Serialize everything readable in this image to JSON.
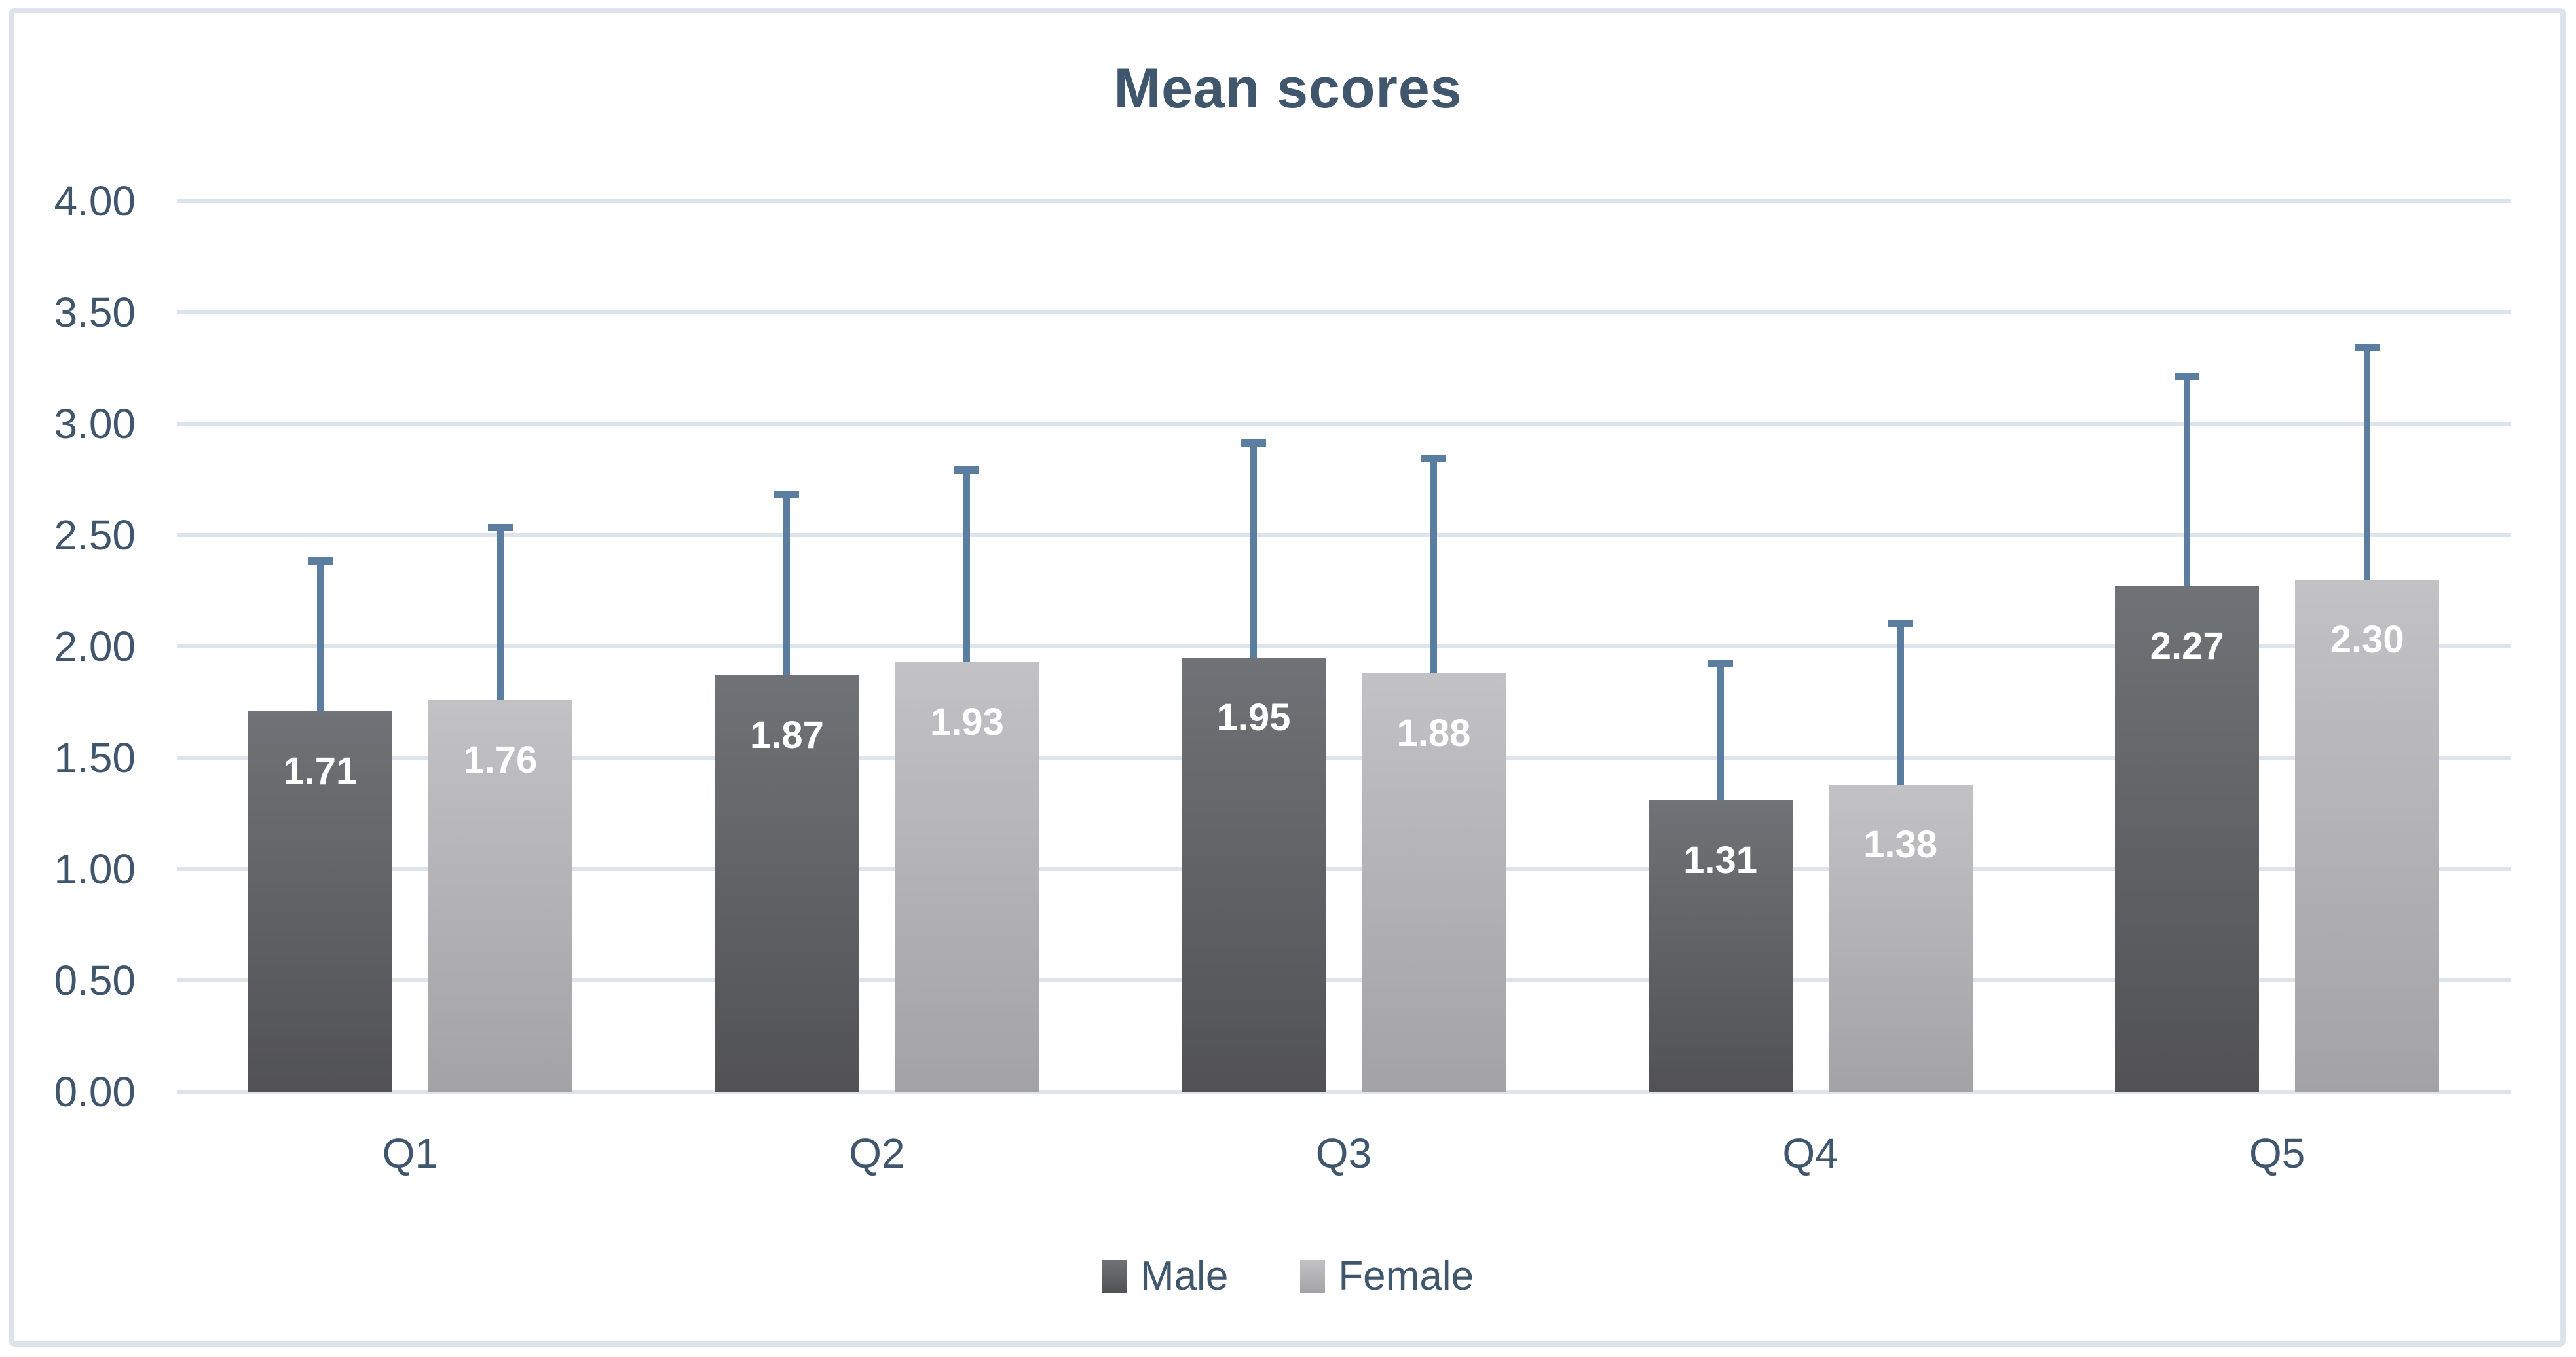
{
  "chart_data": {
    "type": "bar",
    "title": "Mean scores",
    "categories": [
      "Q1",
      "Q2",
      "Q3",
      "Q4",
      "Q5"
    ],
    "series": [
      {
        "name": "Male",
        "values": [
          1.71,
          1.87,
          1.95,
          1.31,
          2.27
        ],
        "value_labels": [
          "1.71",
          "1.87",
          "1.95",
          "1.31",
          "2.27"
        ],
        "error_top": [
          2.4,
          2.7,
          2.93,
          1.94,
          3.23
        ],
        "color_top": "#6f7276",
        "color_bottom": "#525254"
      },
      {
        "name": "Female",
        "values": [
          1.76,
          1.93,
          1.88,
          1.38,
          2.3
        ],
        "value_labels": [
          "1.76",
          "1.93",
          "1.88",
          "1.38",
          "2.30"
        ],
        "error_top": [
          2.55,
          2.81,
          2.86,
          2.12,
          3.36
        ],
        "color_top": "#c2c2c4",
        "color_bottom": "#a3a3a5"
      }
    ],
    "y_axis": {
      "min": 0,
      "max": 4,
      "step": 0.5,
      "tick_labels": [
        "0.00",
        "0.50",
        "1.00",
        "1.50",
        "2.00",
        "2.50",
        "3.00",
        "3.50",
        "4.00"
      ]
    },
    "grid": true,
    "legend_position": "bottom",
    "xlabel": "",
    "ylabel": ""
  },
  "colors": {
    "text": "#40566c",
    "gridline": "#dee4ec",
    "error_bar": "#5b7da0",
    "frame_border": "#dde3ea",
    "data_label": "#ffffff",
    "background": "#ffffff"
  }
}
